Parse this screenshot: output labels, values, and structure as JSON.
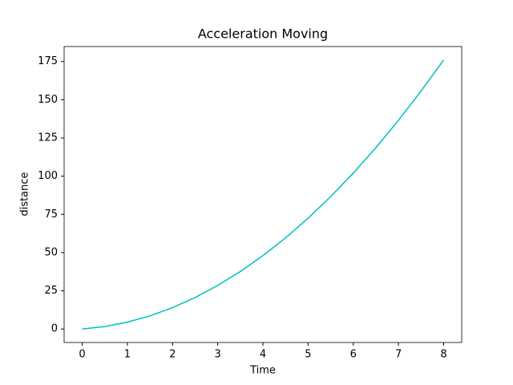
{
  "chart_data": {
    "type": "line",
    "title": "Acceleration Moving",
    "x_label": "Time",
    "y_label": "distance",
    "x": [
      0,
      0.5,
      1,
      1.5,
      2,
      2.5,
      3,
      3.5,
      4,
      4.5,
      5,
      5.5,
      6,
      6.5,
      7,
      7.5,
      8
    ],
    "series": [
      {
        "color": "#00bfbf",
        "values": [
          0,
          1.625,
          4.5,
          8.625,
          14,
          20.625,
          28.5,
          37.625,
          48,
          59.625,
          72.5,
          86.625,
          102,
          118.625,
          136.5,
          155.625,
          176
        ]
      }
    ],
    "xlim": [
      -0.4,
      8.4
    ],
    "xticks": [
      0,
      1,
      2,
      3,
      4,
      5,
      6,
      7,
      8
    ],
    "ylim": [
      -8.8,
      184.8
    ],
    "yticks": [
      0,
      25,
      50,
      75,
      100,
      125,
      150,
      175
    ]
  }
}
